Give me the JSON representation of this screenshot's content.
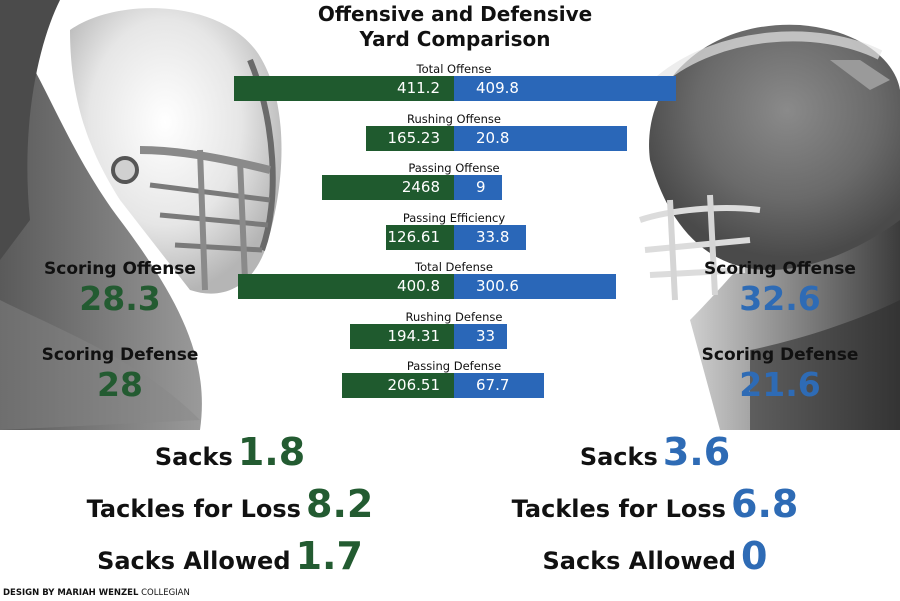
{
  "header": {
    "title_line1": "Offensive and Defensive",
    "title_line2": "Yard Comparison"
  },
  "colors": {
    "team_left": "#1f5a2e",
    "team_right": "#2a67b8",
    "left_number": "#235b31",
    "right_number": "#2e6bb5"
  },
  "chart_data": {
    "type": "bar",
    "title": "Offensive and Defensive Yard Comparison",
    "layout": "diverging-horizontal",
    "categories": [
      "Total Offense",
      "Rushing Offense",
      "Passing Offense",
      "Passing Efficiency",
      "Total Defense",
      "Rushing Defense",
      "Passing Defense"
    ],
    "series": [
      {
        "name": "left-team",
        "values": [
          "411.2",
          "165.23",
          "2468",
          "126.61",
          "400.8",
          "194.31",
          "206.51"
        ]
      },
      {
        "name": "right-team",
        "values": [
          "409.8",
          "20.8",
          "9",
          "33.8",
          "300.6",
          "33",
          "67.7"
        ]
      }
    ],
    "xlabel": "",
    "ylabel": ""
  },
  "left_team": {
    "scoring_offense_label": "Scoring Offense",
    "scoring_offense_value": "28.3",
    "scoring_defense_label": "Scoring Defense",
    "scoring_defense_value": "28",
    "stats": [
      {
        "label": "Sacks",
        "value": "1.8"
      },
      {
        "label": "Tackles for Loss",
        "value": "8.2"
      },
      {
        "label": "Sacks Allowed",
        "value": "1.7"
      }
    ]
  },
  "right_team": {
    "scoring_offense_label": "Scoring Offense",
    "scoring_offense_value": "32.6",
    "scoring_defense_label": "Scoring Defense",
    "scoring_defense_value": "21.6",
    "stats": [
      {
        "label": "Sacks",
        "value": "3.6"
      },
      {
        "label": "Tackles for Loss",
        "value": "6.8"
      },
      {
        "label": "Sacks Allowed",
        "value": "0"
      }
    ]
  },
  "credit": {
    "design_by": "DESIGN BY MARIAH WENZEL",
    "publication": "COLLEGIAN"
  }
}
